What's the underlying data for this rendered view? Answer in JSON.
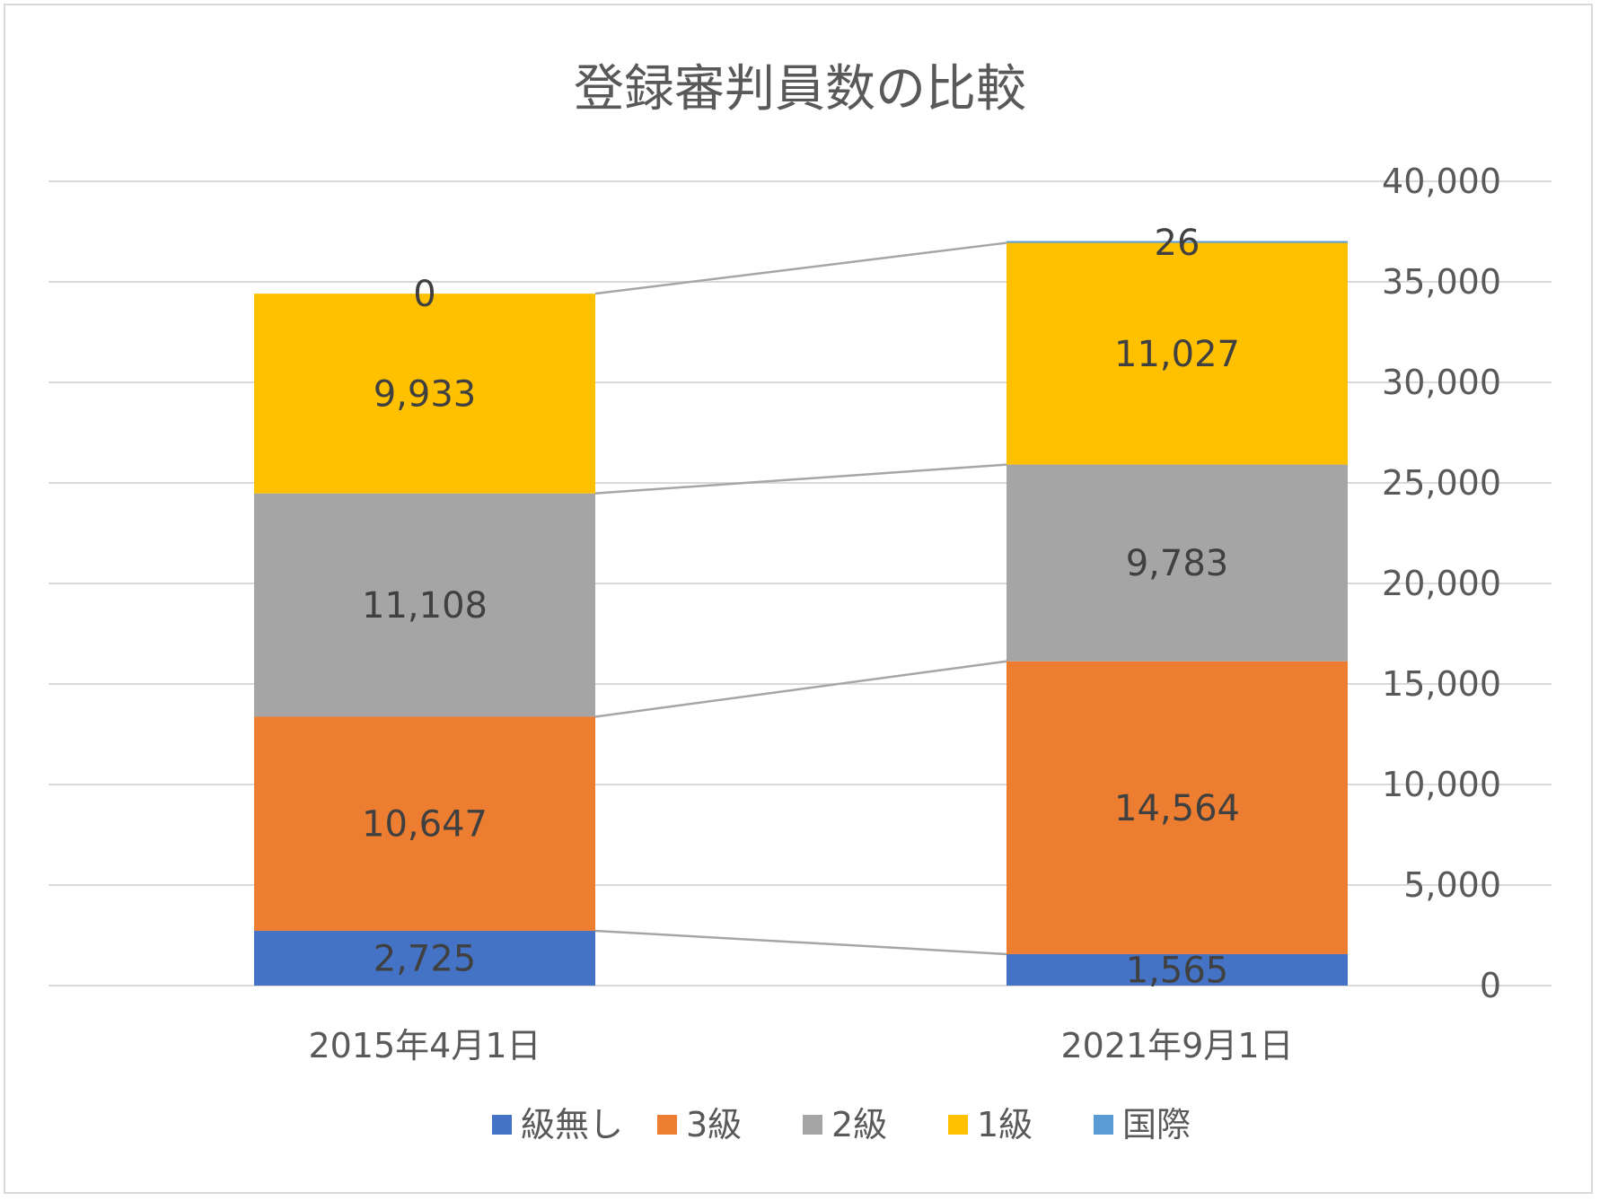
{
  "chart_data": {
    "type": "bar",
    "stacked": true,
    "title": "登録審判員数の比較",
    "categories": [
      "2015年4月1日",
      "2021年9月1日"
    ],
    "series": [
      {
        "name": "級無し",
        "color": "#4472C4",
        "values": [
          2725,
          1565
        ],
        "labels": [
          "2,725",
          "1,565"
        ]
      },
      {
        "name": "3級",
        "color": "#ED7D31",
        "values": [
          10647,
          14564
        ],
        "labels": [
          "10,647",
          "14,564"
        ]
      },
      {
        "name": "2級",
        "color": "#A5A5A5",
        "values": [
          11108,
          9783
        ],
        "labels": [
          "11,108",
          "9,783"
        ]
      },
      {
        "name": "1級",
        "color": "#FFC000",
        "values": [
          9933,
          11027
        ],
        "labels": [
          "9,933",
          "11,027"
        ]
      },
      {
        "name": "国際",
        "color": "#5B9BD5",
        "values": [
          0,
          26
        ],
        "labels": [
          "0",
          "26"
        ]
      }
    ],
    "y_axis": {
      "position": "right",
      "ylim": [
        0,
        40000
      ],
      "ticks": [
        0,
        5000,
        10000,
        15000,
        20000,
        25000,
        30000,
        35000,
        40000
      ],
      "tick_labels": [
        "0",
        "5,000",
        "10,000",
        "15,000",
        "20,000",
        "25,000",
        "30,000",
        "35,000",
        "40,000"
      ]
    },
    "grid": true,
    "series_lines": true,
    "legend_position": "bottom",
    "colors": {
      "grid": "#d9d9d9",
      "series_line": "#a6a6a6",
      "text": "#595959"
    }
  }
}
